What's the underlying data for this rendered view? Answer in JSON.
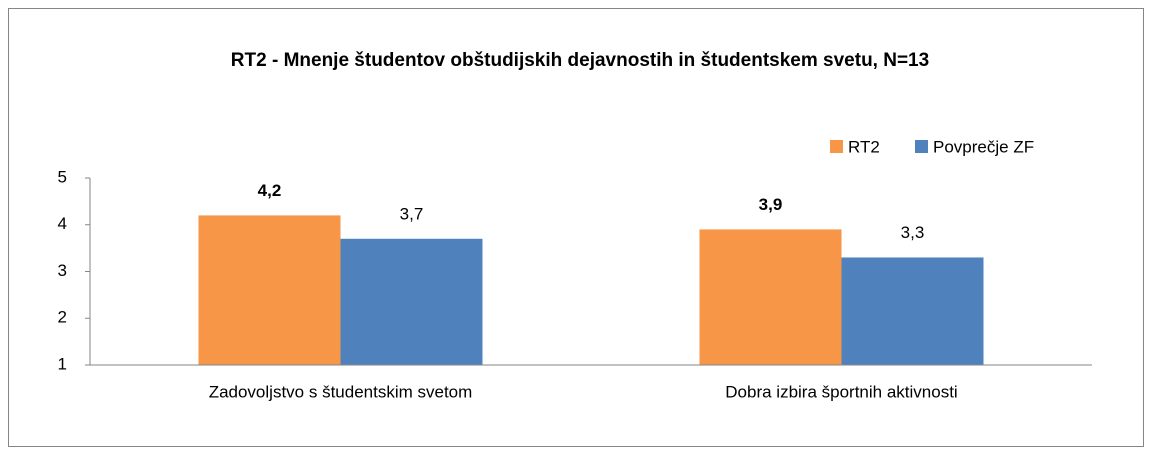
{
  "chart_data": {
    "type": "bar",
    "title": "RT2 - Mnenje študentov obštudijskih dejavnostih in študentskem svetu, N=13",
    "categories": [
      "Zadovoljstvo s študentskim svetom",
      "Dobra izbira športnih aktivnosti"
    ],
    "series": [
      {
        "name": "RT2",
        "color": "#f79646",
        "values": [
          4.2,
          3.9
        ],
        "value_labels": [
          "4,2",
          "3,9"
        ]
      },
      {
        "name": "Povprečje ZF",
        "color": "#4f81bd",
        "values": [
          3.7,
          3.3
        ],
        "value_labels": [
          "3,7",
          "3,3"
        ]
      }
    ],
    "ylim": [
      1,
      5
    ],
    "yticks": [
      1,
      2,
      3,
      4,
      5
    ],
    "grid": false,
    "legend": "top-right"
  }
}
